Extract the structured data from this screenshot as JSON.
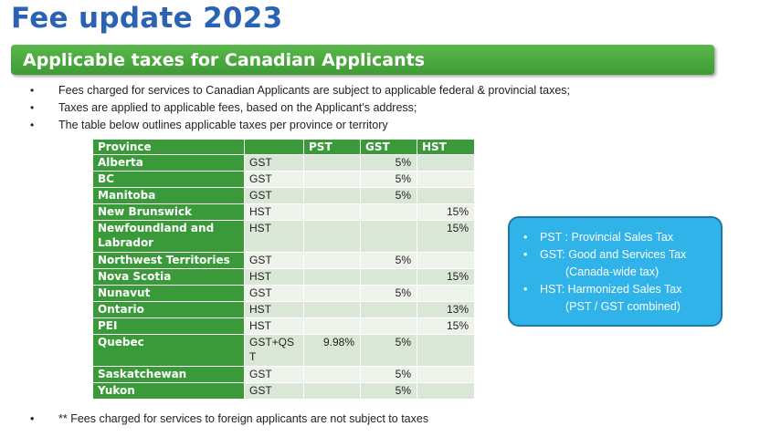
{
  "title": "Fee update 2023",
  "banner": "Applicable taxes for Canadian Applicants",
  "bullets": [
    "Fees charged for services to Canadian Applicants are subject to applicable federal & provincial taxes;",
    "Taxes are applied to applicable fees, based on the Applicant’s address;",
    "The table below outlines applicable taxes per province or territory"
  ],
  "bullet_symbol": "•",
  "table": {
    "headers": [
      "Province",
      "",
      "PST",
      "GST",
      "HST"
    ],
    "rows": [
      {
        "province": "Alberta",
        "tax": "GST",
        "pst": "",
        "gst": "5%",
        "hst": ""
      },
      {
        "province": "BC",
        "tax": "GST",
        "pst": "",
        "gst": "5%",
        "hst": ""
      },
      {
        "province": "Manitoba",
        "tax": "GST",
        "pst": "",
        "gst": "5%",
        "hst": ""
      },
      {
        "province": "New Brunswick",
        "tax": "HST",
        "pst": "",
        "gst": "",
        "hst": "15%"
      },
      {
        "province": "Newfoundland and Labrador",
        "tax": "HST",
        "pst": "",
        "gst": "",
        "hst": "15%"
      },
      {
        "province": "Northwest Territories",
        "tax": "GST",
        "pst": "",
        "gst": "5%",
        "hst": ""
      },
      {
        "province": "Nova Scotia",
        "tax": "HST",
        "pst": "",
        "gst": "",
        "hst": "15%"
      },
      {
        "province": "Nunavut",
        "tax": "GST",
        "pst": "",
        "gst": "5%",
        "hst": ""
      },
      {
        "province": "Ontario",
        "tax": "HST",
        "pst": "",
        "gst": "",
        "hst": "13%"
      },
      {
        "province": "PEI",
        "tax": "HST",
        "pst": "",
        "gst": "",
        "hst": "15%"
      },
      {
        "province": "Quebec",
        "tax": "GST+QST",
        "pst": "9.98%",
        "gst": "5%",
        "hst": ""
      },
      {
        "province": "Saskatchewan",
        "tax": "GST",
        "pst": "",
        "gst": "5%",
        "hst": ""
      },
      {
        "province": "Yukon",
        "tax": "GST",
        "pst": "",
        "gst": "5%",
        "hst": ""
      }
    ]
  },
  "legend": [
    {
      "line1": "PST : Provincial Sales Tax",
      "line2": ""
    },
    {
      "line1": "GST: Good and Services Tax",
      "line2": "(Canada-wide tax)"
    },
    {
      "line1": "HST: Harmonized Sales Tax",
      "line2": "(PST / GST combined)"
    }
  ],
  "footnote": "** Fees charged for services to foreign applicants are not subject to taxes",
  "colors": {
    "title": "#2a62b4",
    "banner_green": "#3f9a35",
    "table_header_green": "#3a9a39",
    "row_light": "#edf3ea",
    "row_dark": "#dbe7d6",
    "legend_blue": "#2fb3e8"
  }
}
